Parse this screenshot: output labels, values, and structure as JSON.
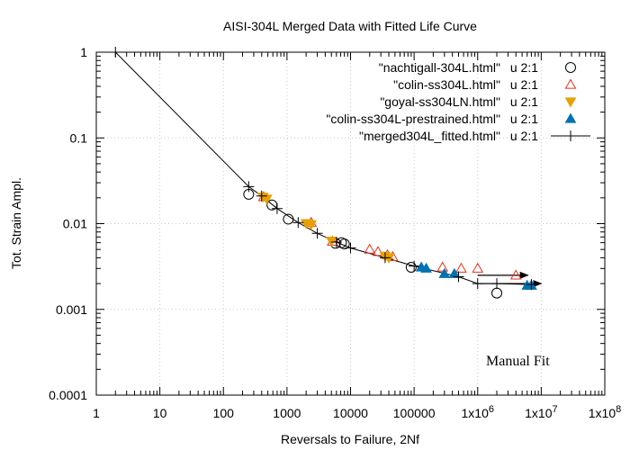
{
  "chart_data": {
    "type": "scatter",
    "title": "AISI-304L Merged Data with Fitted Life Curve",
    "xlabel": "Reversals to Failure, 2Nf",
    "ylabel": "Tot. Strain Ampl.",
    "xscale": "log",
    "yscale": "log",
    "xlim": [
      1,
      100000000
    ],
    "ylim": [
      0.0001,
      1
    ],
    "grid": true,
    "legend_position": "top-right",
    "x_tick_labels": [
      "1",
      "10",
      "100",
      "1000",
      "10000",
      "100000",
      "1x10^6",
      "1x10^7",
      "1x10^8"
    ],
    "y_tick_labels": [
      "0.0001",
      "0.001",
      "0.01",
      "0.1",
      "1"
    ],
    "annotation": "Manual Fit",
    "series": [
      {
        "name": "\"nachtigall-304L.html\"",
        "using": "u 2:1",
        "marker": "open-circle",
        "color": "#000000",
        "points": [
          [
            250,
            0.022
          ],
          [
            580,
            0.0165
          ],
          [
            1050,
            0.0113
          ],
          [
            5800,
            0.0059
          ],
          [
            7200,
            0.006
          ],
          [
            8000,
            0.0058
          ],
          [
            90000,
            0.0031
          ],
          [
            2000000,
            0.00155
          ]
        ]
      },
      {
        "name": "\"colin-ss304L.html\"",
        "using": "u 2:1",
        "marker": "open-triangle-up",
        "color": "#e8301c",
        "points": [
          [
            430,
            0.0205
          ],
          [
            2400,
            0.0103
          ],
          [
            5200,
            0.0062
          ],
          [
            20000,
            0.005
          ],
          [
            27000,
            0.0047
          ],
          [
            38000,
            0.0043
          ],
          [
            46000,
            0.0041
          ],
          [
            280000,
            0.0031
          ],
          [
            550000,
            0.003
          ],
          [
            1000000,
            0.003
          ],
          [
            4000000,
            0.0025
          ]
        ]
      },
      {
        "name": "\"goyal-ss304LN.html\"",
        "using": "u 2:1",
        "marker": "filled-triangle-down",
        "color": "#e6a000",
        "points": [
          [
            420,
            0.0205
          ],
          [
            480,
            0.0195
          ],
          [
            2000,
            0.0101
          ],
          [
            2400,
            0.0098
          ],
          [
            5000,
            0.0063
          ],
          [
            35000,
            0.0042
          ],
          [
            40000,
            0.004
          ]
        ]
      },
      {
        "name": "\"colin-ss304L-prestrained.html\"",
        "using": "u 2:1",
        "marker": "filled-triangle-up",
        "color": "#0072b2",
        "points": [
          [
            130000,
            0.0031
          ],
          [
            155000,
            0.003
          ],
          [
            300000,
            0.0026
          ],
          [
            430000,
            0.0026
          ],
          [
            6000000,
            0.0019
          ],
          [
            7000000,
            0.0019
          ]
        ]
      },
      {
        "name": "\"merged304L_fitted.html\"",
        "using": "u 2:1",
        "marker": "plus-line",
        "color": "#000000",
        "points": [
          [
            2,
            1.0
          ],
          [
            250,
            0.027
          ],
          [
            400,
            0.021
          ],
          [
            700,
            0.015
          ],
          [
            1500,
            0.0103
          ],
          [
            3000,
            0.0077
          ],
          [
            6000,
            0.0061
          ],
          [
            10000,
            0.0052
          ],
          [
            35000,
            0.004
          ],
          [
            100000,
            0.0032
          ],
          [
            500000,
            0.0024
          ],
          [
            1000000,
            0.002
          ],
          [
            2000000,
            0.002
          ],
          [
            7000000,
            0.00195
          ]
        ]
      }
    ],
    "arrows": [
      {
        "from": [
          1000000,
          0.0025
        ],
        "to": [
          6200000,
          0.0025
        ]
      },
      {
        "from": [
          1000000,
          0.002
        ],
        "to": [
          10000000,
          0.002
        ]
      }
    ]
  }
}
